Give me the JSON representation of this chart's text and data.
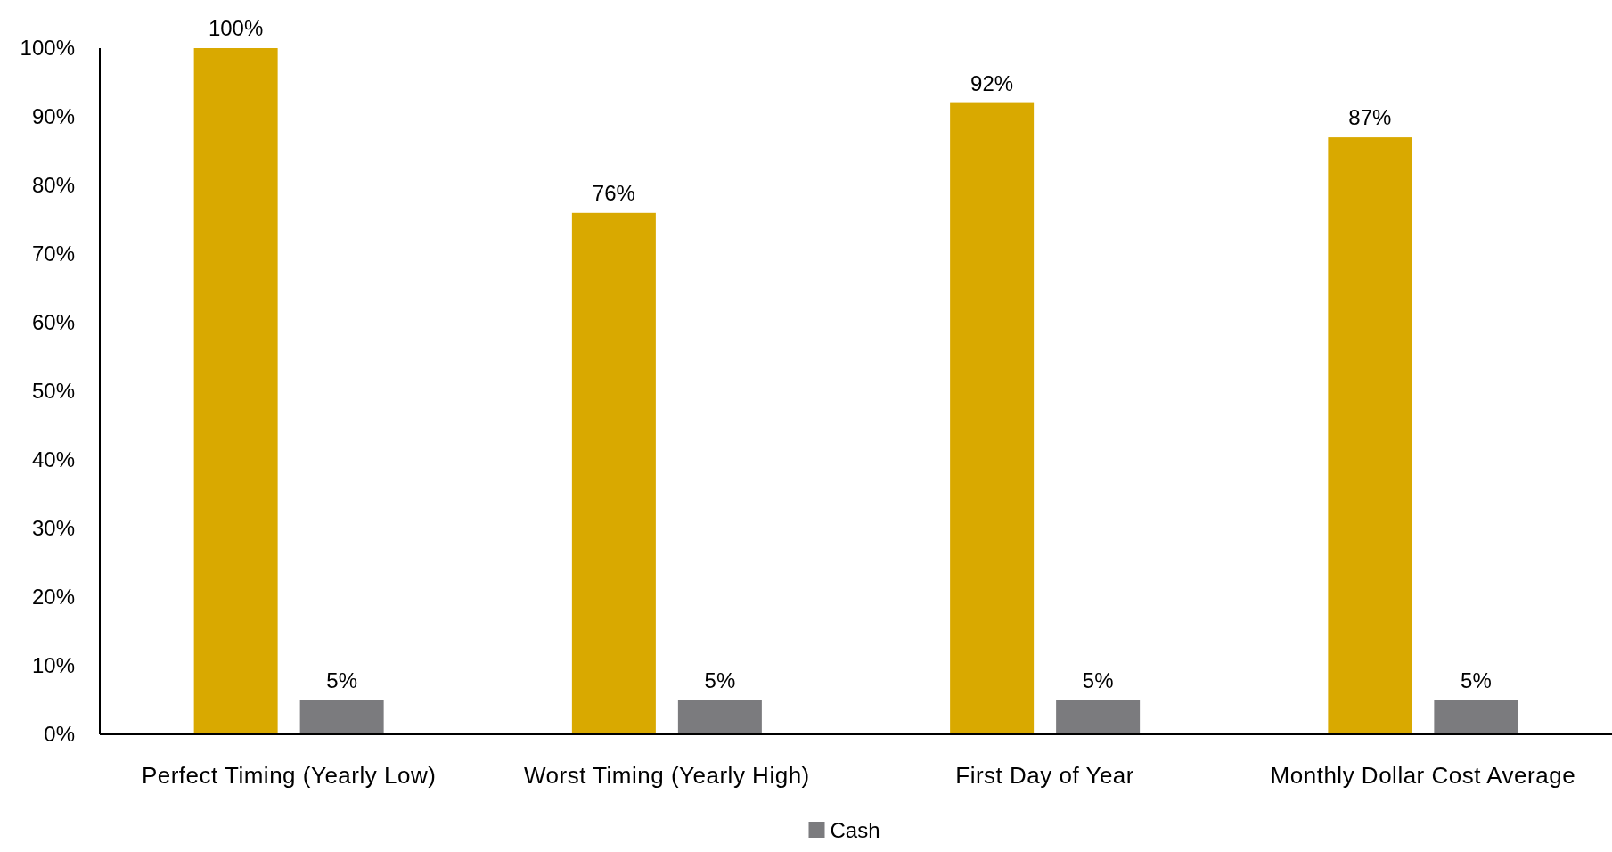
{
  "chart_data": {
    "type": "bar",
    "categories": [
      "Perfect Timing (Yearly Low)",
      "Worst Timing (Yearly High)",
      "First Day of Year",
      "Monthly Dollar Cost Average"
    ],
    "series": [
      {
        "color": "#d9a900",
        "values": [
          100,
          76,
          92,
          87
        ],
        "value_labels": [
          "100%",
          "76%",
          "92%",
          "87%"
        ]
      },
      {
        "name": "Cash",
        "color": "#7b7b7e",
        "values": [
          5,
          5,
          5,
          5
        ],
        "value_labels": [
          "5%",
          "5%",
          "5%",
          "5%"
        ]
      }
    ],
    "ylim": [
      0,
      100
    ],
    "yticks": [
      {
        "value": 0,
        "label": "0%"
      },
      {
        "value": 10,
        "label": "10%"
      },
      {
        "value": 20,
        "label": "20%"
      },
      {
        "value": 30,
        "label": "30%"
      },
      {
        "value": 40,
        "label": "40%"
      },
      {
        "value": 50,
        "label": "50%"
      },
      {
        "value": 60,
        "label": "60%"
      },
      {
        "value": 70,
        "label": "70%"
      },
      {
        "value": 80,
        "label": "80%"
      },
      {
        "value": 90,
        "label": "90%"
      },
      {
        "value": 100,
        "label": "100%"
      }
    ],
    "grid": false,
    "legend": "bottom"
  }
}
